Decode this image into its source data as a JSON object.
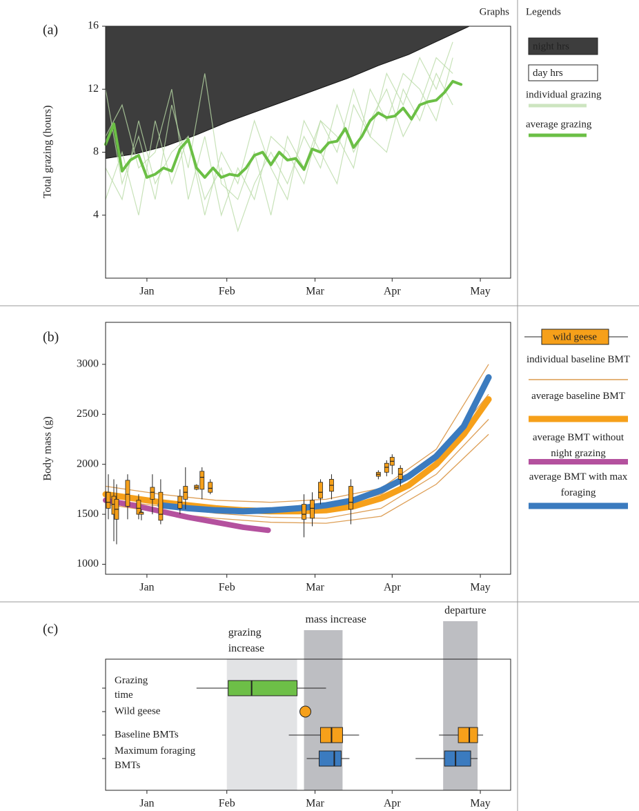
{
  "header": {
    "graphs": "Graphs",
    "legends": "Legends"
  },
  "chart_data": [
    {
      "type": "line",
      "panel": "(a)",
      "y_label": "Total grazing (hours)",
      "xlim": [
        0,
        147
      ],
      "xticks": [
        {
          "value": 15,
          "label": "Jan"
        },
        {
          "value": 44,
          "label": "Feb"
        },
        {
          "value": 76,
          "label": "Mar"
        },
        {
          "value": 104,
          "label": "Apr"
        },
        {
          "value": 136,
          "label": "May"
        }
      ],
      "ylim": [
        0,
        16
      ],
      "yticks": [
        4,
        8,
        12,
        16
      ],
      "series": [
        {
          "name": "night hrs",
          "color": "#3d3d3d",
          "style": "area-above",
          "x": [
            0,
            11,
            22,
            33,
            44,
            55,
            66,
            77,
            88,
            99,
            110,
            121,
            132
          ],
          "values": [
            7.6,
            7.9,
            8.4,
            9.1,
            9.9,
            10.6,
            11.3,
            12.0,
            12.7,
            13.5,
            14.2,
            15.1,
            16
          ]
        },
        {
          "name": "day hrs",
          "color": "#ffffff",
          "style": "key"
        },
        {
          "name": "individual grazing",
          "color": "#b9dba6",
          "style": "thin",
          "line_width": 1.2,
          "lines": [
            {
              "x": [
                0,
                6,
                12,
                18,
                24,
                30,
                36,
                42,
                48,
                54,
                60,
                66,
                72,
                78,
                84,
                90,
                96,
                102,
                108,
                114,
                120,
                126
              ],
              "values": [
                12,
                6,
                9,
                5,
                11,
                7,
                13,
                6,
                5,
                8,
                4,
                9,
                7,
                10,
                8,
                12,
                9,
                13,
                11,
                14,
                12,
                15
              ]
            },
            {
              "x": [
                0,
                6,
                12,
                18,
                24,
                30,
                36,
                42,
                48,
                54,
                60,
                66,
                72,
                78,
                84,
                90,
                96,
                102,
                108,
                114,
                120,
                126
              ],
              "values": [
                5,
                8,
                4,
                10,
                6,
                9,
                5,
                7,
                3,
                6,
                8,
                6,
                9,
                7,
                11,
                8,
                10,
                12,
                9,
                11,
                14,
                13
              ]
            },
            {
              "x": [
                0,
                6,
                12,
                18,
                24,
                30,
                36,
                42,
                48,
                54,
                60,
                66,
                72,
                78,
                84,
                90,
                96,
                102,
                108,
                114,
                120,
                126
              ],
              "values": [
                9,
                11,
                7,
                8,
                12,
                5,
                9,
                4,
                7,
                5,
                9,
                8,
                6,
                10,
                9,
                7,
                12,
                10,
                13,
                12,
                10,
                14
              ]
            },
            {
              "x": [
                0,
                6,
                12,
                18,
                24,
                30,
                36,
                42,
                48,
                54,
                60,
                66,
                72,
                78,
                84,
                90,
                96,
                102,
                108,
                114,
                120,
                126
              ],
              "values": [
                7,
                5,
                10,
                6,
                8,
                9,
                4,
                8,
                6,
                10,
                7,
                5,
                10,
                8,
                6,
                11,
                9,
                8,
                12,
                10,
                13,
                11
              ]
            }
          ]
        },
        {
          "name": "average grazing",
          "color": "#6bbf45",
          "style": "thick",
          "line_width": 4,
          "x": [
            0,
            3,
            6,
            9,
            12,
            15,
            18,
            21,
            24,
            27,
            30,
            33,
            36,
            39,
            42,
            45,
            48,
            51,
            54,
            57,
            60,
            63,
            66,
            69,
            72,
            75,
            78,
            81,
            84,
            87,
            90,
            93,
            96,
            99,
            102,
            105,
            108,
            111,
            114,
            117,
            120,
            123,
            126,
            129
          ],
          "values": [
            8.5,
            9.8,
            6.8,
            7.5,
            7.8,
            6.4,
            6.6,
            7.0,
            6.8,
            8.2,
            8.8,
            7.0,
            6.4,
            7.0,
            6.4,
            6.6,
            6.5,
            7.0,
            7.8,
            8.0,
            7.2,
            8.0,
            7.5,
            7.6,
            6.9,
            8.2,
            8.0,
            8.6,
            8.7,
            9.5,
            8.3,
            9.0,
            10.0,
            10.5,
            10.2,
            10.3,
            10.8,
            10.1,
            11.0,
            11.2,
            11.3,
            11.8,
            12.5,
            12.3
          ]
        }
      ]
    },
    {
      "type": "line",
      "panel": "(b)",
      "y_label": "Body mass (g)",
      "xlim": [
        0,
        147
      ],
      "xticks": [
        {
          "value": 15,
          "label": "Jan"
        },
        {
          "value": 44,
          "label": "Feb"
        },
        {
          "value": 76,
          "label": "Mar"
        },
        {
          "value": 104,
          "label": "Apr"
        },
        {
          "value": 136,
          "label": "May"
        }
      ],
      "ylim": [
        900,
        3420
      ],
      "yticks": [
        1000,
        1500,
        2000,
        2500,
        3000
      ],
      "series": [
        {
          "name": "individual baseline BMT",
          "color": "#d4862a",
          "style": "thin",
          "line_width": 1.3,
          "lines": [
            {
              "x": [
                0,
                20,
                40,
                60,
                80,
                100,
                120,
                139
              ],
              "values": [
                1780,
                1700,
                1640,
                1620,
                1650,
                1760,
                2150,
                3000
              ]
            },
            {
              "x": [
                0,
                20,
                40,
                60,
                80,
                100,
                120,
                139
              ],
              "values": [
                1600,
                1520,
                1460,
                1420,
                1410,
                1480,
                1800,
                2300
              ]
            },
            {
              "x": [
                0,
                20,
                40,
                60,
                80,
                100,
                120,
                139
              ],
              "values": [
                1700,
                1620,
                1560,
                1530,
                1560,
                1700,
                2050,
                2700
              ]
            },
            {
              "x": [
                0,
                20,
                40,
                60,
                80,
                100,
                120,
                139
              ],
              "values": [
                1650,
                1580,
                1510,
                1470,
                1460,
                1560,
                1900,
                2450
              ]
            }
          ]
        },
        {
          "name": "average baseline BMT",
          "color": "#f6a01a",
          "style": "thick",
          "line_width": 9,
          "x": [
            0,
            10,
            20,
            30,
            40,
            50,
            60,
            70,
            80,
            90,
            100,
            110,
            120,
            130,
            139
          ],
          "values": [
            1700,
            1660,
            1620,
            1590,
            1560,
            1540,
            1530,
            1530,
            1540,
            1580,
            1660,
            1790,
            2000,
            2300,
            2650
          ]
        },
        {
          "name": "average BMT without night grazing",
          "color": "#b4519e",
          "style": "thick",
          "line_width": 8,
          "x": [
            0,
            10,
            20,
            30,
            40,
            50,
            59
          ],
          "values": [
            1640,
            1590,
            1530,
            1470,
            1420,
            1370,
            1340
          ]
        },
        {
          "name": "average BMT with max foraging",
          "color": "#3b7bbf",
          "style": "thick",
          "line_width": 9,
          "x": [
            20,
            30,
            40,
            50,
            60,
            70,
            80,
            90,
            100,
            110,
            120,
            130,
            139
          ],
          "values": [
            1590,
            1560,
            1540,
            1530,
            1540,
            1560,
            1590,
            1640,
            1740,
            1880,
            2080,
            2380,
            2870
          ]
        }
      ],
      "boxes": {
        "name": "wild geese",
        "color": "#f6a01a",
        "x": [
          1,
          3,
          4,
          8,
          12,
          13,
          17,
          20,
          27,
          29,
          33,
          35,
          38,
          72,
          75,
          78,
          82,
          89,
          99,
          102,
          104,
          107
        ],
        "low": [
          1450,
          1230,
          1200,
          1450,
          1450,
          1440,
          1500,
          1400,
          1500,
          1550,
          1740,
          1650,
          1700,
          1270,
          1380,
          1600,
          1650,
          1400,
          1850,
          1880,
          1900,
          1780
        ],
        "q1": [
          1560,
          1500,
          1450,
          1580,
          1500,
          1500,
          1650,
          1440,
          1560,
          1650,
          1750,
          1750,
          1720,
          1450,
          1460,
          1660,
          1730,
          1550,
          1880,
          1920,
          1990,
          1850
        ],
        "median": [
          1620,
          1600,
          1550,
          1700,
          1560,
          1520,
          1720,
          1500,
          1620,
          1720,
          1770,
          1870,
          1760,
          1500,
          1560,
          1720,
          1790,
          1620,
          1900,
          1970,
          2030,
          1900
        ],
        "q3": [
          1720,
          1680,
          1650,
          1840,
          1640,
          1520,
          1770,
          1720,
          1680,
          1780,
          1790,
          1930,
          1820,
          1600,
          1640,
          1820,
          1850,
          1780,
          1920,
          2010,
          2070,
          1960
        ],
        "high": [
          1900,
          1850,
          1800,
          1900,
          1700,
          1550,
          1900,
          1850,
          1750,
          1970,
          1800,
          1970,
          1850,
          1700,
          1720,
          1850,
          1900,
          1850,
          1940,
          2040,
          2100,
          1990
        ]
      }
    },
    {
      "type": "box",
      "panel": "(c)",
      "xlim": [
        0,
        147
      ],
      "xticks": [
        {
          "value": 15,
          "label": "Jan"
        },
        {
          "value": 44,
          "label": "Feb"
        },
        {
          "value": 76,
          "label": "Mar"
        },
        {
          "value": 104,
          "label": "Apr"
        },
        {
          "value": 136,
          "label": "May"
        }
      ],
      "bands": [
        {
          "label": "grazing increase",
          "range": [
            44,
            69.5
          ],
          "color": "#e2e3e5"
        },
        {
          "label": "mass increase",
          "range": [
            72,
            86
          ],
          "color": "#bdbec2"
        },
        {
          "label": "departure",
          "range": [
            122.5,
            135
          ],
          "color": "#bdbec2"
        }
      ],
      "series": [
        {
          "name": "Grazing time",
          "color": "#6dbf47",
          "boxes": [
            {
              "low": 33,
              "q1": 44.5,
              "median": 53,
              "q3": 69.5,
              "high": 80
            }
          ]
        },
        {
          "name": "Wild geese",
          "color": "#f6a01a",
          "points": [
            72.5
          ]
        },
        {
          "name": "Baseline BMTs",
          "color": "#f6a01a",
          "boxes": [
            {
              "low": 66.5,
              "q1": 78,
              "median": 82,
              "q3": 86,
              "high": 92
            },
            {
              "low": 121,
              "q1": 128,
              "median": 132,
              "q3": 135,
              "high": 137
            }
          ]
        },
        {
          "name": "Maximum foraging BMTs",
          "color": "#3b7bbf",
          "boxes": [
            {
              "low": 73,
              "q1": 77.5,
              "median": 83,
              "q3": 85.5,
              "high": 88.5
            },
            {
              "low": 112.5,
              "q1": 123,
              "median": 127,
              "q3": 132.5,
              "high": 135
            }
          ]
        }
      ]
    }
  ]
}
